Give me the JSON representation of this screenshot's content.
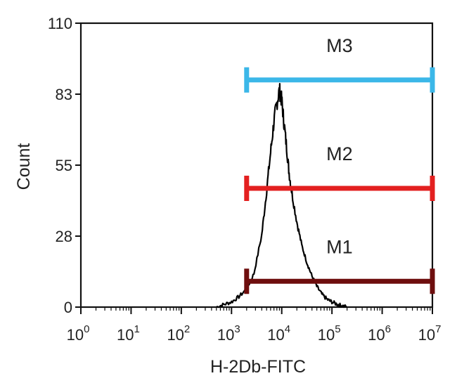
{
  "chart_data": {
    "type": "histogram",
    "xlabel": "H-2Db-FITC",
    "ylabel": "Count",
    "x_scale": "log10",
    "xlim": [
      1,
      10000000
    ],
    "ylim": [
      0,
      110
    ],
    "y_ticks": [
      "0",
      "28",
      "55",
      "83",
      "110"
    ],
    "x_ticks": [
      {
        "base": "10",
        "exp": "0"
      },
      {
        "base": "10",
        "exp": "1"
      },
      {
        "base": "10",
        "exp": "2"
      },
      {
        "base": "10",
        "exp": "3"
      },
      {
        "base": "10",
        "exp": "4"
      },
      {
        "base": "10",
        "exp": "5"
      },
      {
        "base": "10",
        "exp": "6"
      },
      {
        "base": "10",
        "exp": "7"
      }
    ],
    "histogram": {
      "color": "#000000",
      "x": [
        500,
        700,
        1000,
        1400,
        2000,
        2800,
        4000,
        5000,
        6000,
        7000,
        8000,
        9000,
        10000,
        11000,
        12500,
        14000,
        16000,
        20000,
        25000,
        32000,
        40000,
        50000,
        63000,
        80000,
        100000,
        130000,
        160000,
        200000
      ],
      "counts": [
        0,
        1,
        2,
        4,
        7,
        13,
        28,
        45,
        60,
        72,
        79,
        84,
        80,
        72,
        62,
        52,
        44,
        33,
        24,
        17,
        12,
        8,
        5,
        3,
        2,
        1,
        0.5,
        0
      ]
    },
    "markers": [
      {
        "name": "M1",
        "x_start": 2000,
        "x_end": 20000000,
        "y": 10,
        "color": "#6e0e0e"
      },
      {
        "name": "M2",
        "x_start": 2000,
        "x_end": 20000000,
        "y": 46,
        "color": "#e32020"
      },
      {
        "name": "M3",
        "x_start": 2000,
        "x_end": 20000000,
        "y": 88,
        "color": "#3bb7e8"
      }
    ]
  }
}
